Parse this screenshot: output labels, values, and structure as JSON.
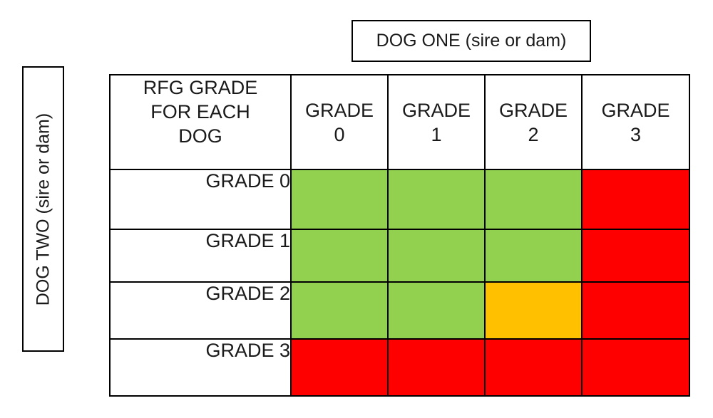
{
  "dog_one_label": "DOG ONE (sire or dam)",
  "dog_two_label": "DOG TWO (sire or dam)",
  "corner_lines": [
    "RFG GRADE",
    "FOR EACH",
    "DOG"
  ],
  "columns": [
    {
      "line1": "GRADE",
      "line2": "0"
    },
    {
      "line1": "GRADE",
      "line2": "1"
    },
    {
      "line1": "GRADE",
      "line2": "2"
    },
    {
      "line1": "GRADE",
      "line2": "3"
    }
  ],
  "rows": [
    {
      "label": "GRADE 0",
      "cells": [
        "green",
        "green",
        "green",
        "red"
      ]
    },
    {
      "label": "GRADE 1",
      "cells": [
        "green",
        "green",
        "green",
        "red"
      ]
    },
    {
      "label": "GRADE 2",
      "cells": [
        "green",
        "green",
        "amber",
        "red"
      ]
    },
    {
      "label": "GRADE 3",
      "cells": [
        "red",
        "red",
        "red",
        "red"
      ]
    }
  ],
  "colors": {
    "green": "#92d050",
    "amber": "#ffc000",
    "red": "#ff0000"
  }
}
